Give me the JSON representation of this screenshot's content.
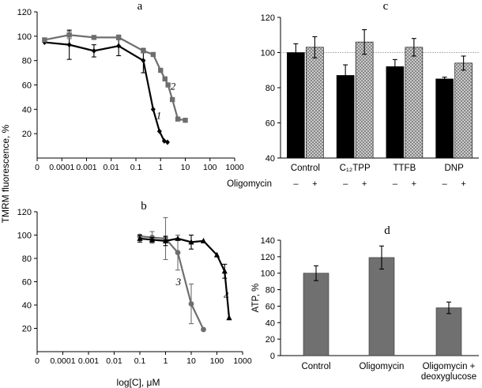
{
  "shared": {
    "ylabel": "TMRM fluorescence, %",
    "xlabel": "log[C], μM"
  },
  "chart_data": [
    {
      "id": "a",
      "panel_label": "a",
      "type": "line",
      "xscale": "log",
      "xlim": [
        1e-05,
        1000
      ],
      "ylim": [
        0,
        120
      ],
      "yticks": [
        20,
        40,
        60,
        80,
        100,
        120
      ],
      "xticks": [
        "0",
        "0.0001",
        "0.001",
        "0.01",
        "0.1",
        "1",
        "10",
        "100",
        "1000"
      ],
      "series": [
        {
          "name": "1",
          "color": "#000000",
          "marker": "diamond",
          "x": [
            2e-05,
            0.0002,
            0.002,
            0.02,
            0.2,
            0.5,
            0.9,
            1.4,
            1.9
          ],
          "y": [
            95,
            93,
            88,
            92,
            80,
            40,
            22,
            14,
            13
          ],
          "err": [
            0,
            12,
            5,
            8,
            10,
            0,
            0,
            0,
            0
          ],
          "label_at": [
            0.85,
            32
          ]
        },
        {
          "name": "2",
          "color": "#6e6e6e",
          "marker": "square",
          "x": [
            2e-05,
            0.0002,
            0.002,
            0.02,
            0.2,
            0.5,
            1.0,
            1.5,
            2.0,
            3.0,
            5.0,
            10.0
          ],
          "y": [
            97,
            101,
            99,
            99,
            88,
            85,
            72,
            65,
            60,
            48,
            32,
            31
          ],
          "err": [
            0,
            3,
            0,
            2,
            0,
            0,
            0,
            0,
            0,
            0,
            0,
            0
          ],
          "label_at": [
            3.2,
            56
          ]
        }
      ]
    },
    {
      "id": "b",
      "panel_label": "b",
      "type": "line",
      "xscale": "log",
      "xlim": [
        1e-05,
        1000
      ],
      "ylim": [
        0,
        120
      ],
      "yticks": [
        20,
        40,
        60,
        80,
        100,
        120
      ],
      "xticks": [
        "0",
        "0.0001",
        "0.001",
        "0.01",
        "0.1",
        "1",
        "10",
        "100",
        "1000"
      ],
      "series": [
        {
          "name": "3",
          "color": "#6e6e6e",
          "marker": "circle",
          "x": [
            0.1,
            0.3,
            1,
            3,
            10,
            30
          ],
          "y": [
            99,
            98,
            97,
            85,
            41,
            19
          ],
          "err": [
            0,
            5,
            18,
            15,
            17,
            0
          ],
          "label_at": [
            3.2,
            57
          ]
        },
        {
          "name": "4",
          "color": "#000000",
          "marker": "triangle",
          "x": [
            0.1,
            0.3,
            1,
            3,
            10,
            30,
            100,
            200,
            300
          ],
          "y": [
            97,
            96,
            95,
            97,
            94,
            95,
            83,
            69,
            29
          ],
          "err": [
            3,
            2,
            4,
            0,
            6,
            0,
            0,
            6,
            0
          ],
          "label_at": [
            230,
            45
          ]
        }
      ]
    },
    {
      "id": "c",
      "panel_label": "c",
      "type": "bar",
      "ylim": [
        40,
        120
      ],
      "yticks": [
        40,
        60,
        80,
        100,
        120
      ],
      "reference_line": 100,
      "categories": [
        "Control",
        "C₁₂TPP",
        "TTFB",
        "DNP"
      ],
      "series": [
        {
          "name": "–",
          "fill": "#000000",
          "values": [
            100,
            87,
            92,
            85
          ],
          "err": [
            5,
            6,
            4,
            1
          ]
        },
        {
          "name": "+",
          "fill": "#d6d6d6",
          "pattern": "crosshatch",
          "values": [
            103,
            106,
            103,
            94
          ],
          "err": [
            6,
            7,
            5,
            4
          ]
        }
      ],
      "row_label": "Oligomycin",
      "row_signs": [
        "–",
        "+",
        "–",
        "+",
        "–",
        "+",
        "–",
        "+"
      ]
    },
    {
      "id": "d",
      "panel_label": "d",
      "type": "bar",
      "ylabel": "ATP, %",
      "ylim": [
        0,
        140
      ],
      "yticks": [
        0,
        20,
        40,
        60,
        80,
        100,
        120,
        140
      ],
      "categories": [
        "Control",
        "Oligomycin",
        "Oligomycin +\ndeoxyglucose"
      ],
      "values": [
        100,
        119,
        58
      ],
      "err": [
        9,
        14,
        7
      ],
      "fill": "#707070"
    }
  ]
}
